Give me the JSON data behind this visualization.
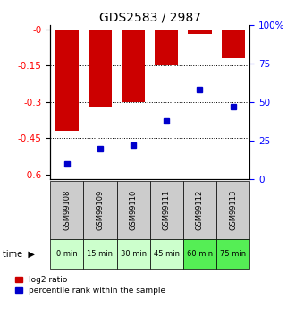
{
  "title": "GDS2583 / 2987",
  "samples": [
    "GSM99108",
    "GSM99109",
    "GSM99110",
    "GSM99111",
    "GSM99112",
    "GSM99113"
  ],
  "time_labels": [
    "0 min",
    "15 min",
    "30 min",
    "45 min",
    "60 min",
    "75 min"
  ],
  "log2_ratio": [
    -0.42,
    -0.32,
    -0.3,
    -0.15,
    -0.02,
    -0.12
  ],
  "percentile_rank": [
    10,
    20,
    22,
    38,
    58,
    47
  ],
  "ylim_left": [
    -0.62,
    0.02
  ],
  "ylim_right": [
    0,
    100
  ],
  "left_yticks": [
    0.0,
    -0.15,
    -0.3,
    -0.45,
    -0.6
  ],
  "left_yticklabels": [
    "-0",
    "-0.15",
    "-0.3",
    "-0.45",
    "-0.6"
  ],
  "right_yticks": [
    0,
    25,
    50,
    75,
    100
  ],
  "right_yticklabels": [
    "0",
    "25",
    "50",
    "75",
    "100%"
  ],
  "bar_color": "#cc0000",
  "marker_color": "#0000cc",
  "bar_width": 0.7,
  "title_fontsize": 10,
  "tick_fontsize": 7.5,
  "time_bg_colors": [
    "#ccffcc",
    "#ccffcc",
    "#ccffcc",
    "#ccffcc",
    "#55ee55",
    "#55ee55"
  ],
  "sample_bg_color": "#cccccc",
  "legend_red_label": "log2 ratio",
  "legend_blue_label": "percentile rank within the sample"
}
